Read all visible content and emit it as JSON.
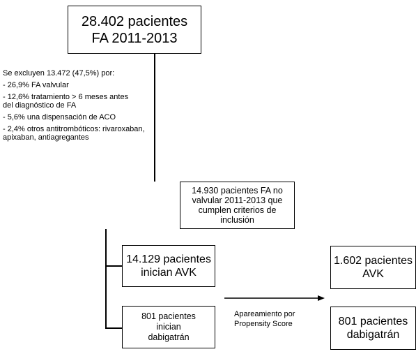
{
  "boxes": {
    "total": {
      "line1": "28.402 pacientes",
      "line2": "FA 2011-2013"
    },
    "included": {
      "line1": "14.930 pacientes FA no",
      "line2": "valvular 2011-2013 que",
      "line3": "cumplen criterios de",
      "line4": "inclusión"
    },
    "avk_start": {
      "line1": "14.129 pacientes",
      "line2": "inician AVK"
    },
    "dabi_start": {
      "line1": "801 pacientes",
      "line2": "inician",
      "line3": "dabigatrán"
    },
    "avk_matched": {
      "line1": "1.602 pacientes",
      "line2": "AVK"
    },
    "dabi_matched": {
      "line1": "801 pacientes",
      "line2": "dabigatrán"
    }
  },
  "exclusions": {
    "header": "Se excluyen 13.472 (47,5%) por:",
    "items": [
      "- 26,9% FA valvular",
      "- 12,6% tratamiento > 6 meses antes del diagnóstico de FA",
      "- 5,6% una dispensación de ACO",
      "- 2,4% otros antitrombóticos: rivaroxaban, apixaban, antiagregantes"
    ]
  },
  "arrow_label": {
    "line1": "Apareamiento por",
    "line2": "Propensity Score"
  }
}
